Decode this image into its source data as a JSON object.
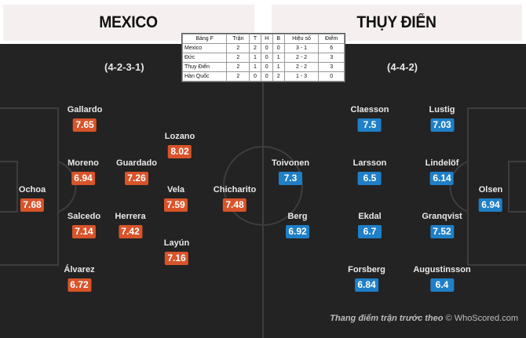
{
  "header": {
    "left_team": "MEXICO",
    "right_team": "THỤY ĐIỂN"
  },
  "formations": {
    "left": "(4-2-3-1)",
    "right": "(4-4-2)"
  },
  "table": {
    "headers": [
      "Bảng F",
      "Trận",
      "T",
      "H",
      "B",
      "Hiệu số",
      "Điểm"
    ],
    "rows": [
      [
        "Mexico",
        "2",
        "2",
        "0",
        "0",
        "3 - 1",
        "6"
      ],
      [
        "Đức",
        "2",
        "1",
        "0",
        "1",
        "2 - 2",
        "3"
      ],
      [
        "Thụy Điển",
        "2",
        "1",
        "0",
        "1",
        "2 - 2",
        "3"
      ],
      [
        "Hàn Quốc",
        "2",
        "0",
        "0",
        "2",
        "1 - 3",
        "0"
      ]
    ]
  },
  "mexico_players": [
    {
      "name": "Ochoa",
      "rating": "7.68"
    },
    {
      "name": "Gallardo",
      "rating": "7.65"
    },
    {
      "name": "Moreno",
      "rating": "6.94"
    },
    {
      "name": "Salcedo",
      "rating": "7.14"
    },
    {
      "name": "Álvarez",
      "rating": "6.72"
    },
    {
      "name": "Guardado",
      "rating": "7.26"
    },
    {
      "name": "Herrera",
      "rating": "7.42"
    },
    {
      "name": "Lozano",
      "rating": "8.02"
    },
    {
      "name": "Vela",
      "rating": "7.59"
    },
    {
      "name": "Layún",
      "rating": "7.16"
    },
    {
      "name": "Chicharito",
      "rating": "7.48"
    }
  ],
  "sweden_players": [
    {
      "name": "Toivonen",
      "rating": "7.3"
    },
    {
      "name": "Berg",
      "rating": "6.92"
    },
    {
      "name": "Claesson",
      "rating": "7.5"
    },
    {
      "name": "Larsson",
      "rating": "6.5"
    },
    {
      "name": "Ekdal",
      "rating": "6.7"
    },
    {
      "name": "Forsberg",
      "rating": "6.84"
    },
    {
      "name": "Lustig",
      "rating": "7.03"
    },
    {
      "name": "Lindelöf",
      "rating": "6.14"
    },
    {
      "name": "Granqvist",
      "rating": "7.52"
    },
    {
      "name": "Augustinsson",
      "rating": "6.4"
    },
    {
      "name": "Olsen",
      "rating": "6.94"
    }
  ],
  "footer": {
    "caption": "Thang điểm trận trước theo",
    "source": "© WhoScored.com"
  },
  "colors": {
    "mexico_rating": "#d8542a",
    "sweden_rating": "#1f7fc7",
    "pitch": "#232323"
  }
}
